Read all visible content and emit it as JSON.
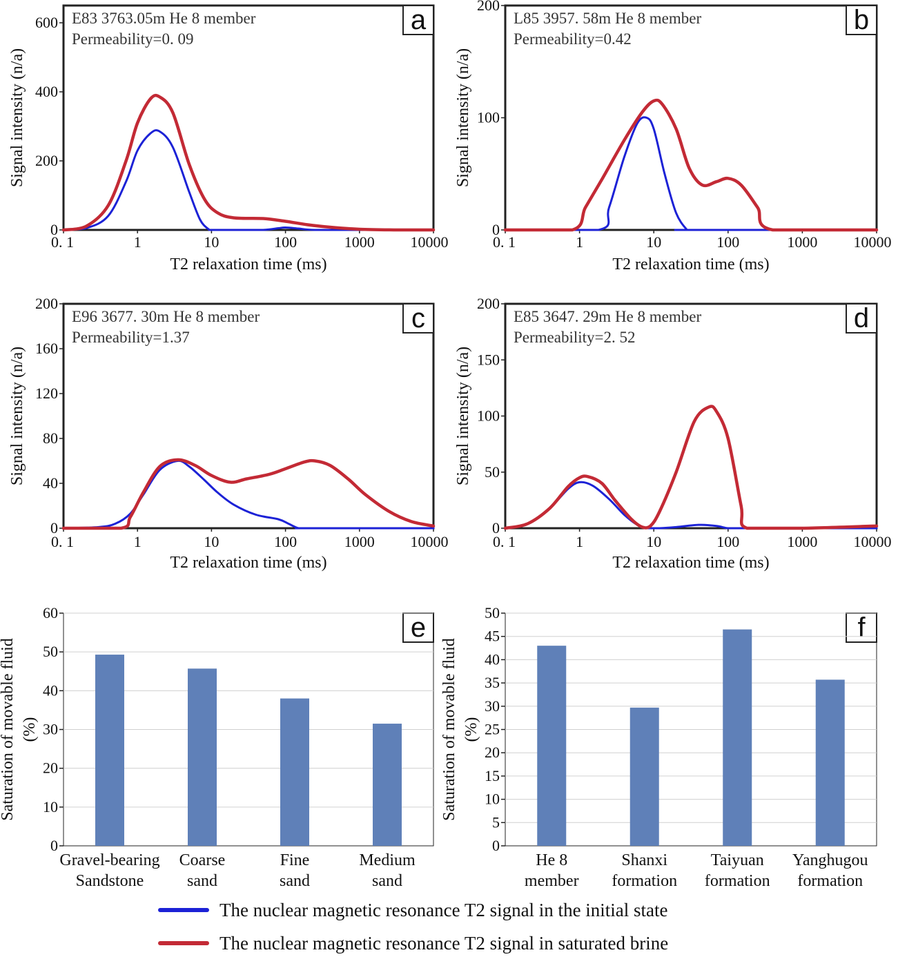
{
  "colors": {
    "initial": "#1c22d6",
    "brine": "#c32a35",
    "bar": "#5f80b8",
    "axis": "#222222",
    "grid": "#d0d0d0"
  },
  "legend": {
    "initial_label": "The nuclear magnetic resonance T2 signal in the initial state",
    "brine_label": "The nuclear magnetic resonance T2 signal in saturated brine"
  },
  "chart_data": [
    {
      "id": "a",
      "type": "line",
      "panel_label": "a",
      "annotation_line1": "E83  3763.05m He 8 member",
      "annotation_line2": "Permeability=0. 09",
      "xlabel": "T2 relaxation time (ms)",
      "ylabel": "Signal intensity (n/a)",
      "xscale": "log",
      "xlim": [
        0.1,
        10000
      ],
      "ylim": [
        0,
        650
      ],
      "xticks": [
        {
          "v": 0.1,
          "label": "0. 1"
        },
        {
          "v": 1,
          "label": "1"
        },
        {
          "v": 10,
          "label": "10"
        },
        {
          "v": 100,
          "label": "100"
        },
        {
          "v": 1000,
          "label": "1000"
        },
        {
          "v": 10000,
          "label": "10000"
        }
      ],
      "yticks": [
        {
          "v": 0,
          "label": "0"
        },
        {
          "v": 200,
          "label": "200"
        },
        {
          "v": 400,
          "label": "400"
        },
        {
          "v": 600,
          "label": "600"
        }
      ],
      "series": [
        {
          "name": "initial",
          "x": [
            0.1,
            0.2,
            0.4,
            0.7,
            1,
            1.5,
            2,
            3,
            5,
            7,
            9,
            10,
            20,
            50,
            80,
            100,
            150,
            250,
            1000,
            10000
          ],
          "y": [
            0,
            5,
            40,
            140,
            230,
            280,
            285,
            240,
            110,
            30,
            3,
            0,
            0,
            0,
            5,
            7,
            4,
            0,
            0,
            0
          ]
        },
        {
          "name": "brine",
          "x": [
            0.1,
            0.2,
            0.4,
            0.7,
            1,
            1.5,
            2,
            3,
            5,
            8,
            12,
            20,
            50,
            100,
            200,
            400,
            1000,
            3000,
            10000
          ],
          "y": [
            0,
            10,
            70,
            200,
            310,
            380,
            385,
            340,
            190,
            90,
            50,
            35,
            33,
            25,
            15,
            8,
            2,
            0,
            0
          ]
        }
      ]
    },
    {
      "id": "b",
      "type": "line",
      "panel_label": "b",
      "annotation_line1": "L85  3957. 58m  He 8 member",
      "annotation_line2": "Permeability=0.42",
      "xlabel": "T2 relaxation time (ms)",
      "ylabel": "Signal intensity (n/a)",
      "xscale": "log",
      "xlim": [
        0.1,
        10000
      ],
      "ylim": [
        0,
        200
      ],
      "xticks": [
        {
          "v": 0.1,
          "label": "0. 1"
        },
        {
          "v": 1,
          "label": "1"
        },
        {
          "v": 10,
          "label": "10"
        },
        {
          "v": 100,
          "label": "100"
        },
        {
          "v": 1000,
          "label": "1000"
        },
        {
          "v": 10000,
          "label": "10000"
        }
      ],
      "yticks": [
        {
          "v": 0,
          "label": "0"
        },
        {
          "v": 100,
          "label": "100"
        },
        {
          "v": 200,
          "label": "200"
        }
      ],
      "series": [
        {
          "name": "initial",
          "x": [
            0.1,
            1.8,
            2.5,
            4,
            6,
            8,
            10,
            14,
            20,
            28,
            30,
            10000
          ],
          "y": [
            0,
            0,
            20,
            65,
            95,
            100,
            90,
            50,
            15,
            0,
            0,
            0
          ]
        },
        {
          "name": "brine",
          "x": [
            0.1,
            0.8,
            1.2,
            2,
            4,
            7,
            10,
            13,
            20,
            30,
            45,
            70,
            100,
            150,
            250,
            400,
            10000
          ],
          "y": [
            0,
            0,
            20,
            45,
            80,
            105,
            115,
            112,
            90,
            55,
            40,
            43,
            46,
            40,
            20,
            0,
            0
          ]
        }
      ]
    },
    {
      "id": "c",
      "type": "line",
      "panel_label": "c",
      "annotation_line1": "E96  3677. 30m  He 8 member",
      "annotation_line2": "Permeability=1.37",
      "xlabel": "T2 relaxation time (ms)",
      "ylabel": "Signal intensity (n/a)",
      "xscale": "log",
      "xlim": [
        0.1,
        10000
      ],
      "ylim": [
        0,
        200
      ],
      "xticks": [
        {
          "v": 0.1,
          "label": "0. 1"
        },
        {
          "v": 1,
          "label": "1"
        },
        {
          "v": 10,
          "label": "10"
        },
        {
          "v": 100,
          "label": "100"
        },
        {
          "v": 1000,
          "label": "1000"
        },
        {
          "v": 10000,
          "label": "10000"
        }
      ],
      "yticks": [
        {
          "v": 0,
          "label": "0"
        },
        {
          "v": 40,
          "label": "40"
        },
        {
          "v": 80,
          "label": "80"
        },
        {
          "v": 120,
          "label": "120"
        },
        {
          "v": 160,
          "label": "160"
        },
        {
          "v": 200,
          "label": "200"
        }
      ],
      "series": [
        {
          "name": "initial",
          "x": [
            0.1,
            0.3,
            0.5,
            0.8,
            1.2,
            2,
            3.5,
            5,
            8,
            12,
            20,
            40,
            80,
            110,
            150,
            200,
            10000
          ],
          "y": [
            0,
            1,
            4,
            13,
            30,
            52,
            60,
            55,
            43,
            32,
            21,
            12,
            8,
            4,
            0,
            0,
            0
          ]
        },
        {
          "name": "brine",
          "x": [
            0.1,
            0.6,
            0.8,
            1.2,
            2,
            3.5,
            6,
            10,
            18,
            30,
            60,
            100,
            180,
            250,
            400,
            700,
            1200,
            2500,
            5000,
            10000
          ],
          "y": [
            0,
            0,
            10,
            32,
            55,
            61,
            56,
            47,
            41,
            44,
            48,
            53,
            59,
            60,
            56,
            44,
            30,
            15,
            6,
            2
          ]
        }
      ]
    },
    {
      "id": "d",
      "type": "line",
      "panel_label": "d",
      "annotation_line1": "E85  3647. 29m   He 8 member",
      "annotation_line2": "Permeability=2. 52",
      "xlabel": "T2 relaxation time (ms)",
      "ylabel": "Signal intensity (n/a)",
      "xscale": "log",
      "xlim": [
        0.1,
        10000
      ],
      "ylim": [
        0,
        200
      ],
      "xticks": [
        {
          "v": 0.1,
          "label": "0. 1"
        },
        {
          "v": 1,
          "label": "1"
        },
        {
          "v": 10,
          "label": "10"
        },
        {
          "v": 100,
          "label": "100"
        },
        {
          "v": 1000,
          "label": "1000"
        },
        {
          "v": 10000,
          "label": "10000"
        }
      ],
      "yticks": [
        {
          "v": 0,
          "label": "0"
        },
        {
          "v": 50,
          "label": "50"
        },
        {
          "v": 100,
          "label": "100"
        },
        {
          "v": 150,
          "label": "150"
        },
        {
          "v": 200,
          "label": "200"
        }
      ],
      "series": [
        {
          "name": "initial",
          "x": [
            0.1,
            0.2,
            0.4,
            0.7,
            1,
            1.5,
            2.5,
            4,
            6,
            8,
            12,
            20,
            40,
            70,
            100,
            150,
            10000
          ],
          "y": [
            0,
            4,
            18,
            35,
            41,
            38,
            26,
            12,
            3,
            0,
            0,
            1,
            3,
            2,
            0,
            0,
            0
          ]
        },
        {
          "name": "brine",
          "x": [
            0.1,
            0.2,
            0.4,
            0.7,
            1,
            1.3,
            2,
            3,
            5,
            7,
            9,
            12,
            20,
            35,
            55,
            70,
            100,
            150,
            180,
            1000,
            10000
          ],
          "y": [
            0,
            4,
            18,
            37,
            45,
            46,
            40,
            25,
            8,
            1,
            2,
            15,
            50,
            95,
            108,
            104,
            80,
            20,
            0,
            0,
            2
          ]
        }
      ]
    },
    {
      "id": "e",
      "type": "bar",
      "panel_label": "e",
      "ylabel_line1": "Saturation of movable fluid",
      "ylabel_line2": "(%)",
      "ylim": [
        0,
        60
      ],
      "yticks": [
        {
          "v": 0,
          "label": "0"
        },
        {
          "v": 10,
          "label": "10"
        },
        {
          "v": 20,
          "label": "20"
        },
        {
          "v": 30,
          "label": "30"
        },
        {
          "v": 40,
          "label": "40"
        },
        {
          "v": 50,
          "label": "50"
        },
        {
          "v": 60,
          "label": "60"
        }
      ],
      "categories": [
        {
          "line1": "Gravel-bearing",
          "line2": "Sandstone"
        },
        {
          "line1": "Coarse",
          "line2": "sand"
        },
        {
          "line1": "Fine",
          "line2": "sand"
        },
        {
          "line1": "Medium",
          "line2": "sand"
        }
      ],
      "values": [
        49.3,
        45.7,
        38,
        31.5
      ]
    },
    {
      "id": "f",
      "type": "bar",
      "panel_label": "f",
      "ylabel_line1": "Saturation of movable fluid",
      "ylabel_line2": "(%)",
      "ylim": [
        0,
        50
      ],
      "yticks": [
        {
          "v": 0,
          "label": "0"
        },
        {
          "v": 5,
          "label": "5"
        },
        {
          "v": 10,
          "label": "10"
        },
        {
          "v": 15,
          "label": "15"
        },
        {
          "v": 20,
          "label": "20"
        },
        {
          "v": 25,
          "label": "25"
        },
        {
          "v": 30,
          "label": "30"
        },
        {
          "v": 35,
          "label": "35"
        },
        {
          "v": 40,
          "label": "40"
        },
        {
          "v": 45,
          "label": "45"
        },
        {
          "v": 50,
          "label": "50"
        }
      ],
      "categories": [
        {
          "line1": "He 8",
          "line2": "member"
        },
        {
          "line1": "Shanxi",
          "line2": "formation"
        },
        {
          "line1": "Taiyuan",
          "line2": "formation"
        },
        {
          "line1": "Yanghugou",
          "line2": "formation"
        }
      ],
      "values": [
        43,
        29.7,
        46.5,
        35.7
      ]
    }
  ]
}
